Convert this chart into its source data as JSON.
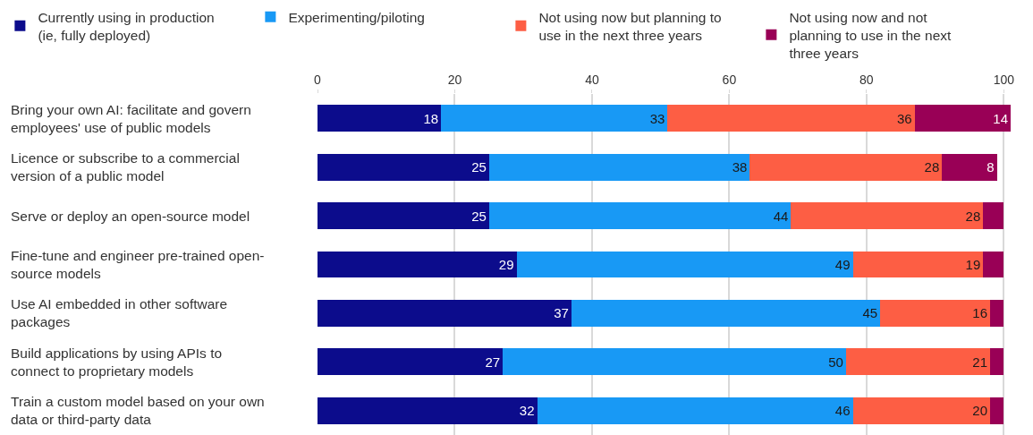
{
  "chart_data": {
    "type": "bar",
    "orientation": "horizontal",
    "stacked": true,
    "legend": "top",
    "grid": "x",
    "categories": [
      "Bring your own AI: facilitate and govern employees' use of public models",
      "Licence or subscribe to a commercial version of a public model",
      "Serve or deploy an open-source model",
      "Fine-tune and engineer pre-trained open-source models",
      "Use AI embedded in other software packages",
      "Build applications by using APIs to connect to proprietary models",
      "Train a custom model based on your own data or third-party data"
    ],
    "series": [
      {
        "name": "Currently using in production (ie, fully deployed)",
        "color": "#0c0c8c",
        "values": [
          18,
          25,
          25,
          29,
          37,
          27,
          32
        ],
        "value_labels": [
          "18",
          "25",
          "25",
          "29",
          "37",
          "27",
          "32"
        ]
      },
      {
        "name": "Experimenting/piloting",
        "color": "#1899f5",
        "values": [
          33,
          38,
          44,
          49,
          45,
          50,
          46
        ],
        "value_labels": [
          "33",
          "38",
          "44",
          "49",
          "45",
          "50",
          "46"
        ]
      },
      {
        "name": "Not using now but planning to use in the next three years",
        "color": "#fd5e44",
        "values": [
          36,
          28,
          28,
          19,
          16,
          21,
          20
        ],
        "value_labels": [
          "36",
          "28",
          "28",
          "19",
          "16",
          "21",
          "20"
        ]
      },
      {
        "name": "Not using now and not planning to use in the next three years",
        "color": "#990056",
        "values": [
          14,
          8,
          3,
          3,
          2,
          2,
          2
        ],
        "value_labels": [
          "14",
          "8",
          null,
          null,
          null,
          null,
          null
        ]
      }
    ],
    "xlim": [
      0,
      101
    ],
    "xticks": [
      0,
      20,
      40,
      60,
      80,
      100
    ]
  }
}
